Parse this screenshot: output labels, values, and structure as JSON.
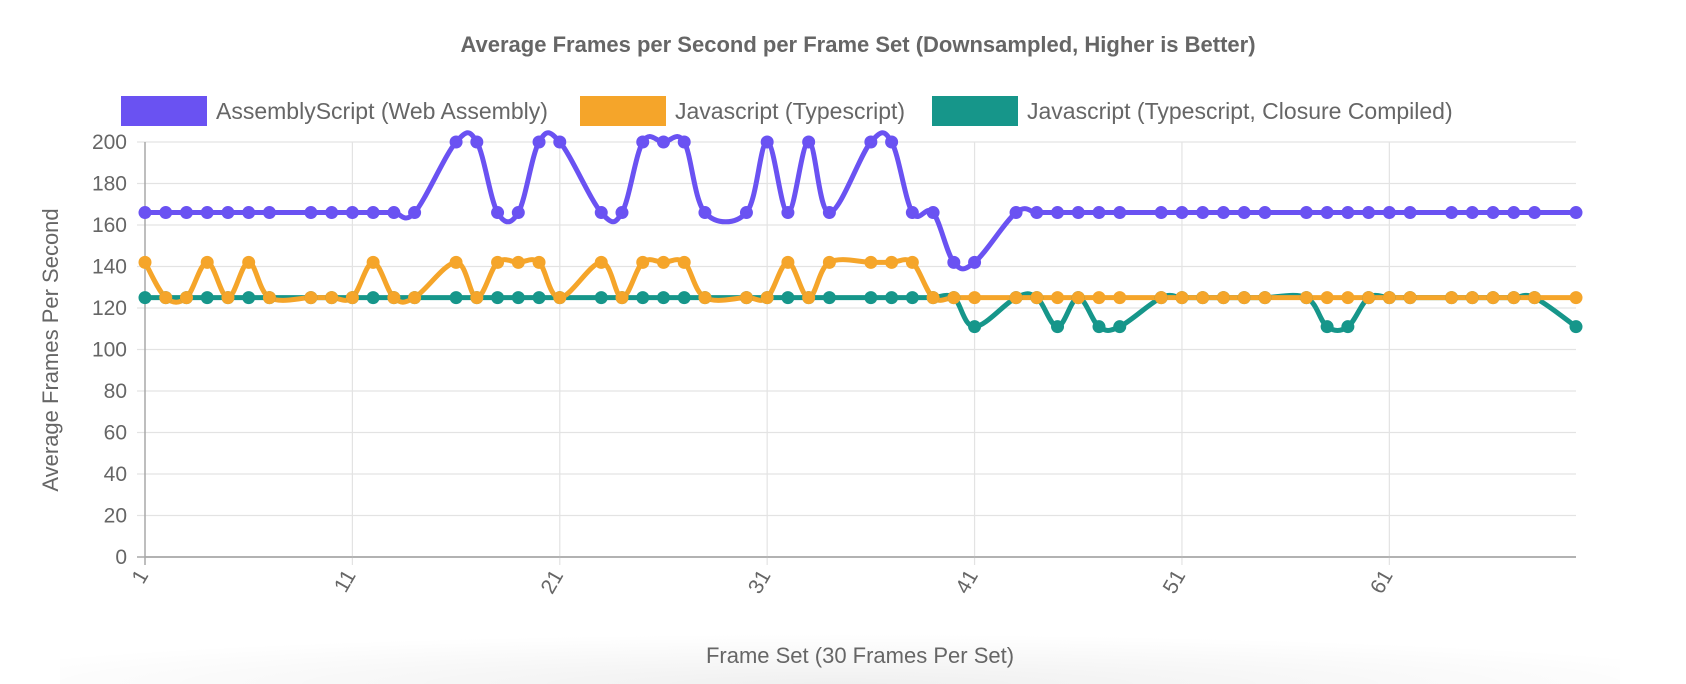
{
  "chart_data": {
    "type": "line",
    "title": "Average Frames per Second per Frame Set (Downsampled, Higher is Better)",
    "xlabel": "Frame Set (30 Frames Per Set)",
    "ylabel": "Average Frames Per Second",
    "ylim": [
      0,
      200
    ],
    "yticks": [
      0,
      20,
      40,
      60,
      80,
      100,
      120,
      140,
      160,
      180,
      200
    ],
    "xlim": [
      1,
      70
    ],
    "xticks": [
      1,
      11,
      21,
      31,
      41,
      51,
      61
    ],
    "grid": true,
    "legend_position": "top",
    "series": [
      {
        "name": "AssemblyScript (Web Assembly)",
        "color": "#6a52f2",
        "points": [
          [
            1,
            166
          ],
          [
            2,
            166
          ],
          [
            3,
            166
          ],
          [
            4,
            166
          ],
          [
            5,
            166
          ],
          [
            6,
            166
          ],
          [
            7,
            166
          ],
          [
            9,
            166
          ],
          [
            10,
            166
          ],
          [
            11,
            166
          ],
          [
            12,
            166
          ],
          [
            13,
            166
          ],
          [
            14,
            166
          ],
          [
            16,
            200
          ],
          [
            17,
            200
          ],
          [
            18,
            166
          ],
          [
            19,
            166
          ],
          [
            20,
            200
          ],
          [
            21,
            200
          ],
          [
            23,
            166
          ],
          [
            24,
            166
          ],
          [
            25,
            200
          ],
          [
            26,
            200
          ],
          [
            27,
            200
          ],
          [
            28,
            166
          ],
          [
            30,
            166
          ],
          [
            31,
            200
          ],
          [
            32,
            166
          ],
          [
            33,
            200
          ],
          [
            34,
            166
          ],
          [
            36,
            200
          ],
          [
            37,
            200
          ],
          [
            38,
            166
          ],
          [
            39,
            166
          ],
          [
            40,
            142
          ],
          [
            41,
            142
          ],
          [
            43,
            166
          ],
          [
            44,
            166
          ],
          [
            45,
            166
          ],
          [
            46,
            166
          ],
          [
            47,
            166
          ],
          [
            48,
            166
          ],
          [
            50,
            166
          ],
          [
            51,
            166
          ],
          [
            52,
            166
          ],
          [
            53,
            166
          ],
          [
            54,
            166
          ],
          [
            55,
            166
          ],
          [
            57,
            166
          ],
          [
            58,
            166
          ],
          [
            59,
            166
          ],
          [
            60,
            166
          ],
          [
            61,
            166
          ],
          [
            62,
            166
          ],
          [
            64,
            166
          ],
          [
            65,
            166
          ],
          [
            66,
            166
          ],
          [
            67,
            166
          ],
          [
            68,
            166
          ],
          [
            70,
            166
          ]
        ]
      },
      {
        "name": "Javascript (Typescript)",
        "color": "#f5a52a",
        "points": [
          [
            1,
            142
          ],
          [
            2,
            125
          ],
          [
            3,
            125
          ],
          [
            4,
            142
          ],
          [
            5,
            125
          ],
          [
            6,
            142
          ],
          [
            7,
            125
          ],
          [
            9,
            125
          ],
          [
            10,
            125
          ],
          [
            11,
            125
          ],
          [
            12,
            142
          ],
          [
            13,
            125
          ],
          [
            14,
            125
          ],
          [
            16,
            142
          ],
          [
            17,
            125
          ],
          [
            18,
            142
          ],
          [
            19,
            142
          ],
          [
            20,
            142
          ],
          [
            21,
            125
          ],
          [
            23,
            142
          ],
          [
            24,
            125
          ],
          [
            25,
            142
          ],
          [
            26,
            142
          ],
          [
            27,
            142
          ],
          [
            28,
            125
          ],
          [
            30,
            125
          ],
          [
            31,
            125
          ],
          [
            32,
            142
          ],
          [
            33,
            125
          ],
          [
            34,
            142
          ],
          [
            36,
            142
          ],
          [
            37,
            142
          ],
          [
            38,
            142
          ],
          [
            39,
            125
          ],
          [
            40,
            125
          ],
          [
            41,
            125
          ],
          [
            43,
            125
          ],
          [
            44,
            125
          ],
          [
            45,
            125
          ],
          [
            46,
            125
          ],
          [
            47,
            125
          ],
          [
            48,
            125
          ],
          [
            50,
            125
          ],
          [
            51,
            125
          ],
          [
            52,
            125
          ],
          [
            53,
            125
          ],
          [
            54,
            125
          ],
          [
            55,
            125
          ],
          [
            57,
            125
          ],
          [
            58,
            125
          ],
          [
            59,
            125
          ],
          [
            60,
            125
          ],
          [
            61,
            125
          ],
          [
            62,
            125
          ],
          [
            64,
            125
          ],
          [
            65,
            125
          ],
          [
            66,
            125
          ],
          [
            67,
            125
          ],
          [
            68,
            125
          ],
          [
            70,
            125
          ]
        ]
      },
      {
        "name": "Javascript (Typescript, Closure Compiled)",
        "color": "#16968a",
        "points": [
          [
            1,
            125
          ],
          [
            2,
            125
          ],
          [
            3,
            125
          ],
          [
            4,
            125
          ],
          [
            5,
            125
          ],
          [
            6,
            125
          ],
          [
            7,
            125
          ],
          [
            9,
            125
          ],
          [
            10,
            125
          ],
          [
            11,
            125
          ],
          [
            12,
            125
          ],
          [
            13,
            125
          ],
          [
            14,
            125
          ],
          [
            16,
            125
          ],
          [
            17,
            125
          ],
          [
            18,
            125
          ],
          [
            19,
            125
          ],
          [
            20,
            125
          ],
          [
            21,
            125
          ],
          [
            23,
            125
          ],
          [
            24,
            125
          ],
          [
            25,
            125
          ],
          [
            26,
            125
          ],
          [
            27,
            125
          ],
          [
            28,
            125
          ],
          [
            30,
            125
          ],
          [
            31,
            125
          ],
          [
            32,
            125
          ],
          [
            33,
            125
          ],
          [
            34,
            125
          ],
          [
            36,
            125
          ],
          [
            37,
            125
          ],
          [
            38,
            125
          ],
          [
            39,
            125
          ],
          [
            40,
            125
          ],
          [
            41,
            111
          ],
          [
            43,
            125
          ],
          [
            44,
            125
          ],
          [
            45,
            111
          ],
          [
            46,
            125
          ],
          [
            47,
            111
          ],
          [
            48,
            111
          ],
          [
            50,
            125
          ],
          [
            51,
            125
          ],
          [
            52,
            125
          ],
          [
            53,
            125
          ],
          [
            54,
            125
          ],
          [
            55,
            125
          ],
          [
            57,
            125
          ],
          [
            58,
            111
          ],
          [
            59,
            111
          ],
          [
            60,
            125
          ],
          [
            61,
            125
          ],
          [
            62,
            125
          ],
          [
            64,
            125
          ],
          [
            65,
            125
          ],
          [
            66,
            125
          ],
          [
            67,
            125
          ],
          [
            68,
            125
          ],
          [
            70,
            111
          ]
        ]
      }
    ]
  }
}
